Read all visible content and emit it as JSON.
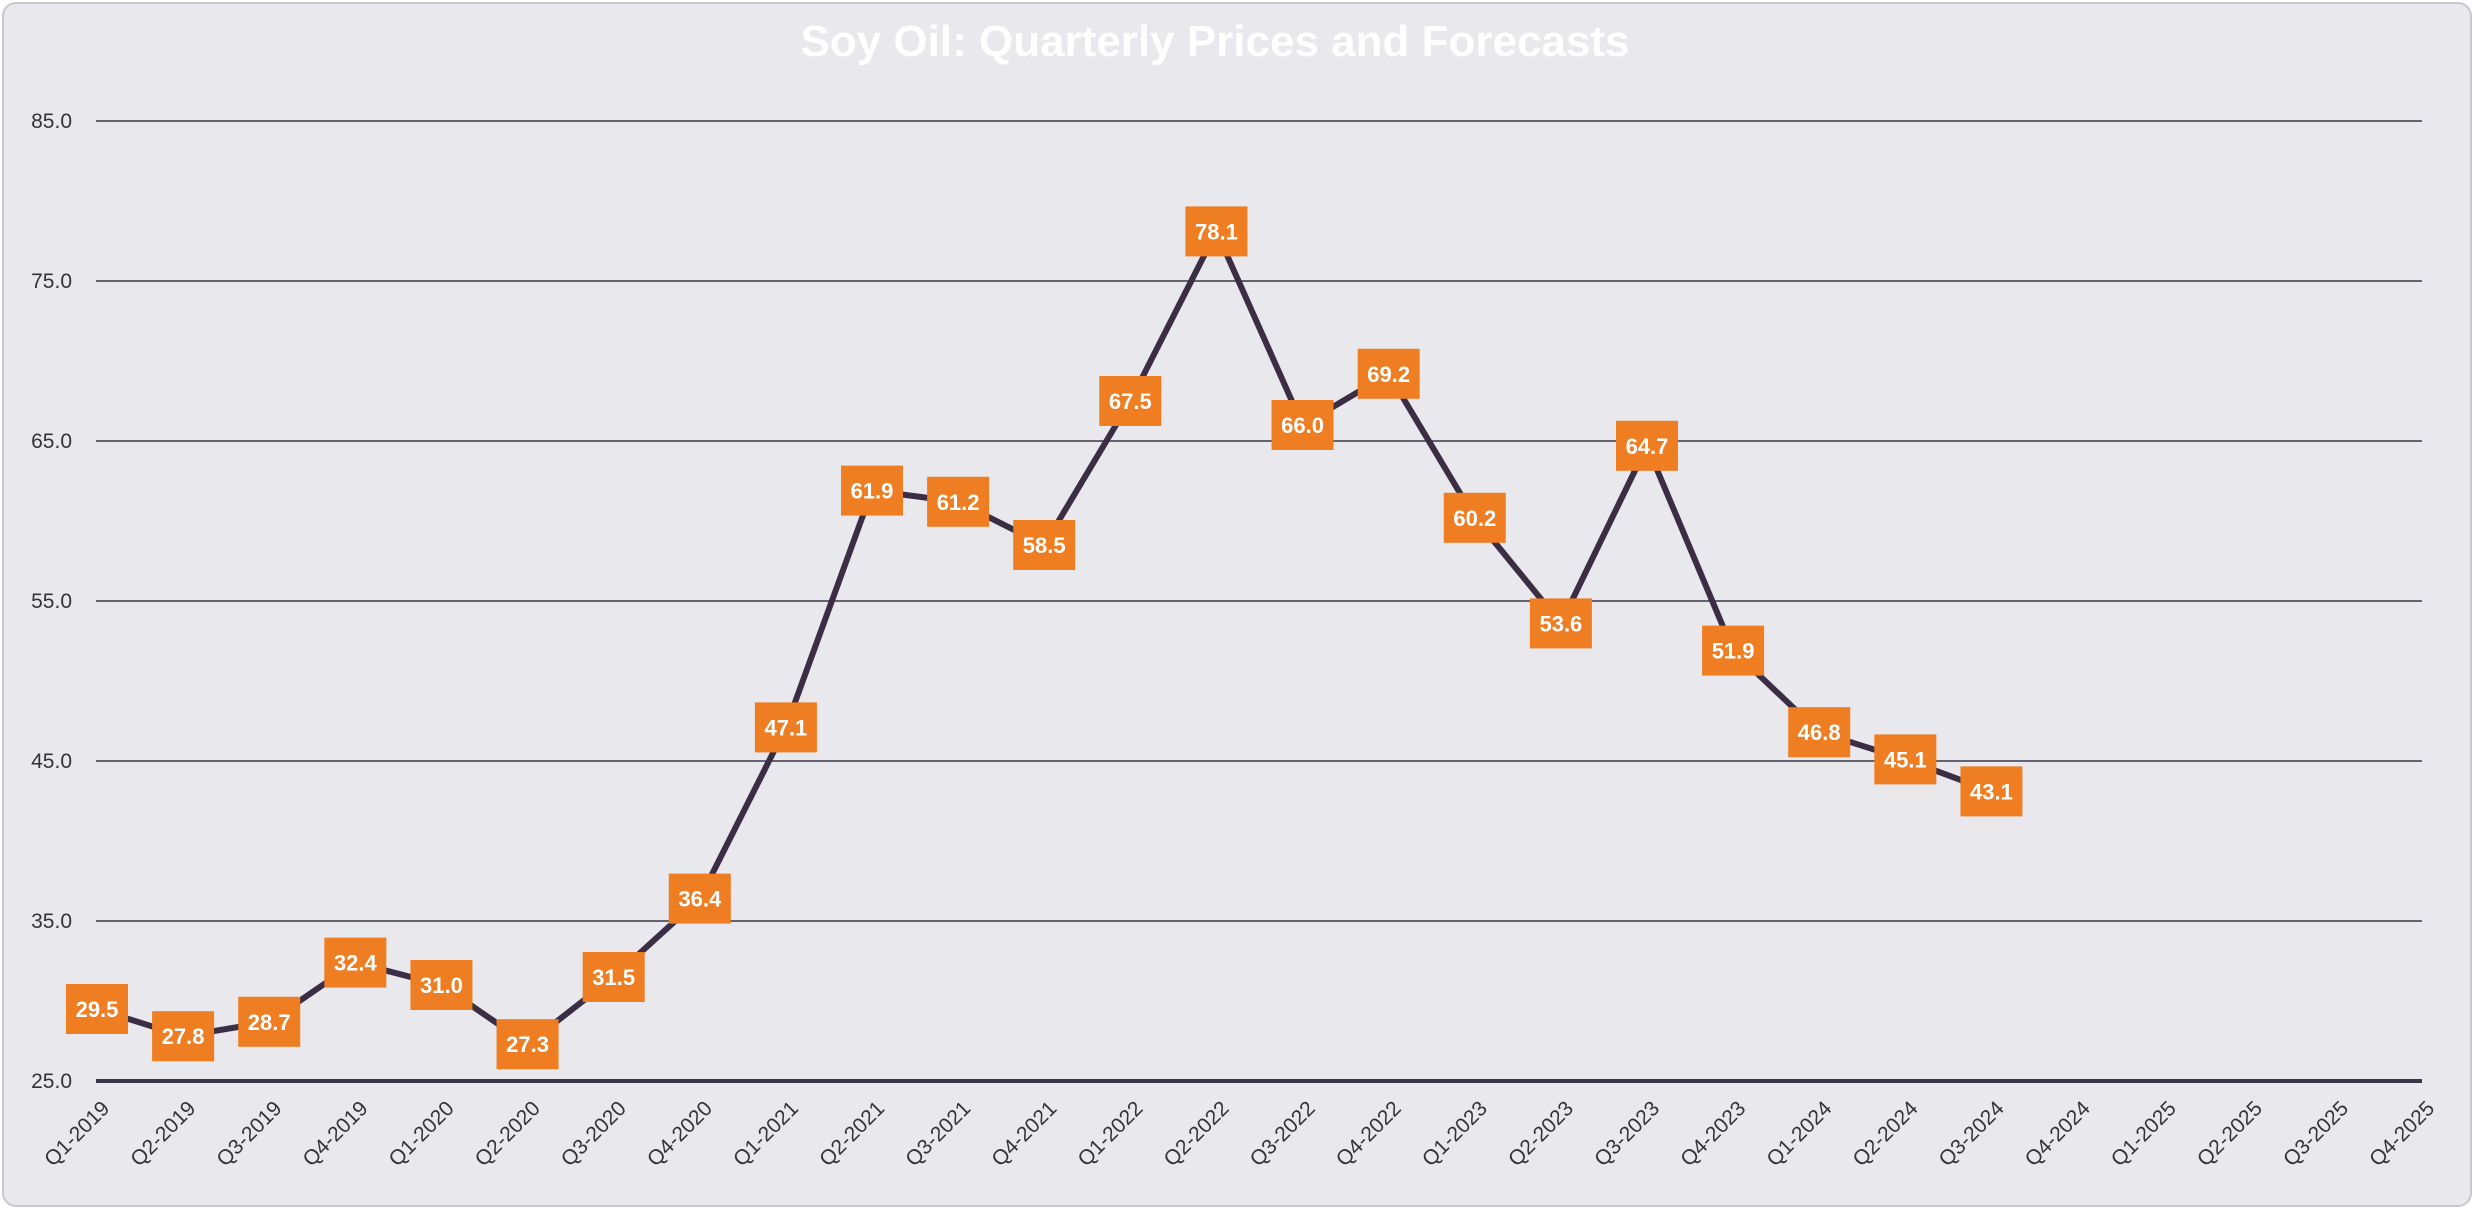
{
  "chart_data": {
    "type": "line",
    "title": "Soy Oil: Quarterly Prices and Forecasts",
    "xlabel": "",
    "ylabel": "",
    "categories": [
      "Q1-2019",
      "Q2-2019",
      "Q3-2019",
      "Q4-2019",
      "Q1-2020",
      "Q2-2020",
      "Q3-2020",
      "Q4-2020",
      "Q1-2021",
      "Q2-2021",
      "Q3-2021",
      "Q4-2021",
      "Q1-2022",
      "Q2-2022",
      "Q3-2022",
      "Q4-2022",
      "Q1-2023",
      "Q2-2023",
      "Q3-2023",
      "Q4-2023",
      "Q1-2024",
      "Q2-2024",
      "Q3-2024",
      "Q4-2024",
      "Q1-2025",
      "Q2-2025",
      "Q3-2025",
      "Q4-2025"
    ],
    "series": [
      {
        "values": [
          29.5,
          27.8,
          28.7,
          32.4,
          31.0,
          27.3,
          31.5,
          36.4,
          47.1,
          61.9,
          61.2,
          58.5,
          67.5,
          78.1,
          66.0,
          69.2,
          60.2,
          53.6,
          64.7,
          51.9,
          46.8,
          45.1,
          43.1,
          null,
          null,
          null,
          null,
          null
        ],
        "labels": [
          "29.5",
          "27.8",
          "28.7",
          "32.4",
          "31.0",
          "27.3",
          "31.5",
          "36.4",
          "47.1",
          "61.9",
          "61.2",
          "58.5",
          "67.5",
          "78.1",
          "66.0",
          "69.2",
          "60.2",
          "53.6",
          "64.7",
          "51.9",
          "46.8",
          "45.1",
          "43.1",
          "",
          "",
          "",
          "",
          ""
        ],
        "line_color": "#3a2d44",
        "label_color": "#ef7d22"
      }
    ],
    "ylim": [
      25,
      85
    ],
    "yticks": [
      25,
      35,
      45,
      55,
      65,
      75,
      85
    ],
    "ytick_labels": [
      "25.0",
      "35.0",
      "45.0",
      "55.0",
      "65.0",
      "75.0",
      "85.0"
    ],
    "grid": true,
    "legend": "none",
    "colors": {
      "background": "#e9e8ec",
      "gridline": "#3a3548",
      "title": "#ffffff"
    }
  }
}
